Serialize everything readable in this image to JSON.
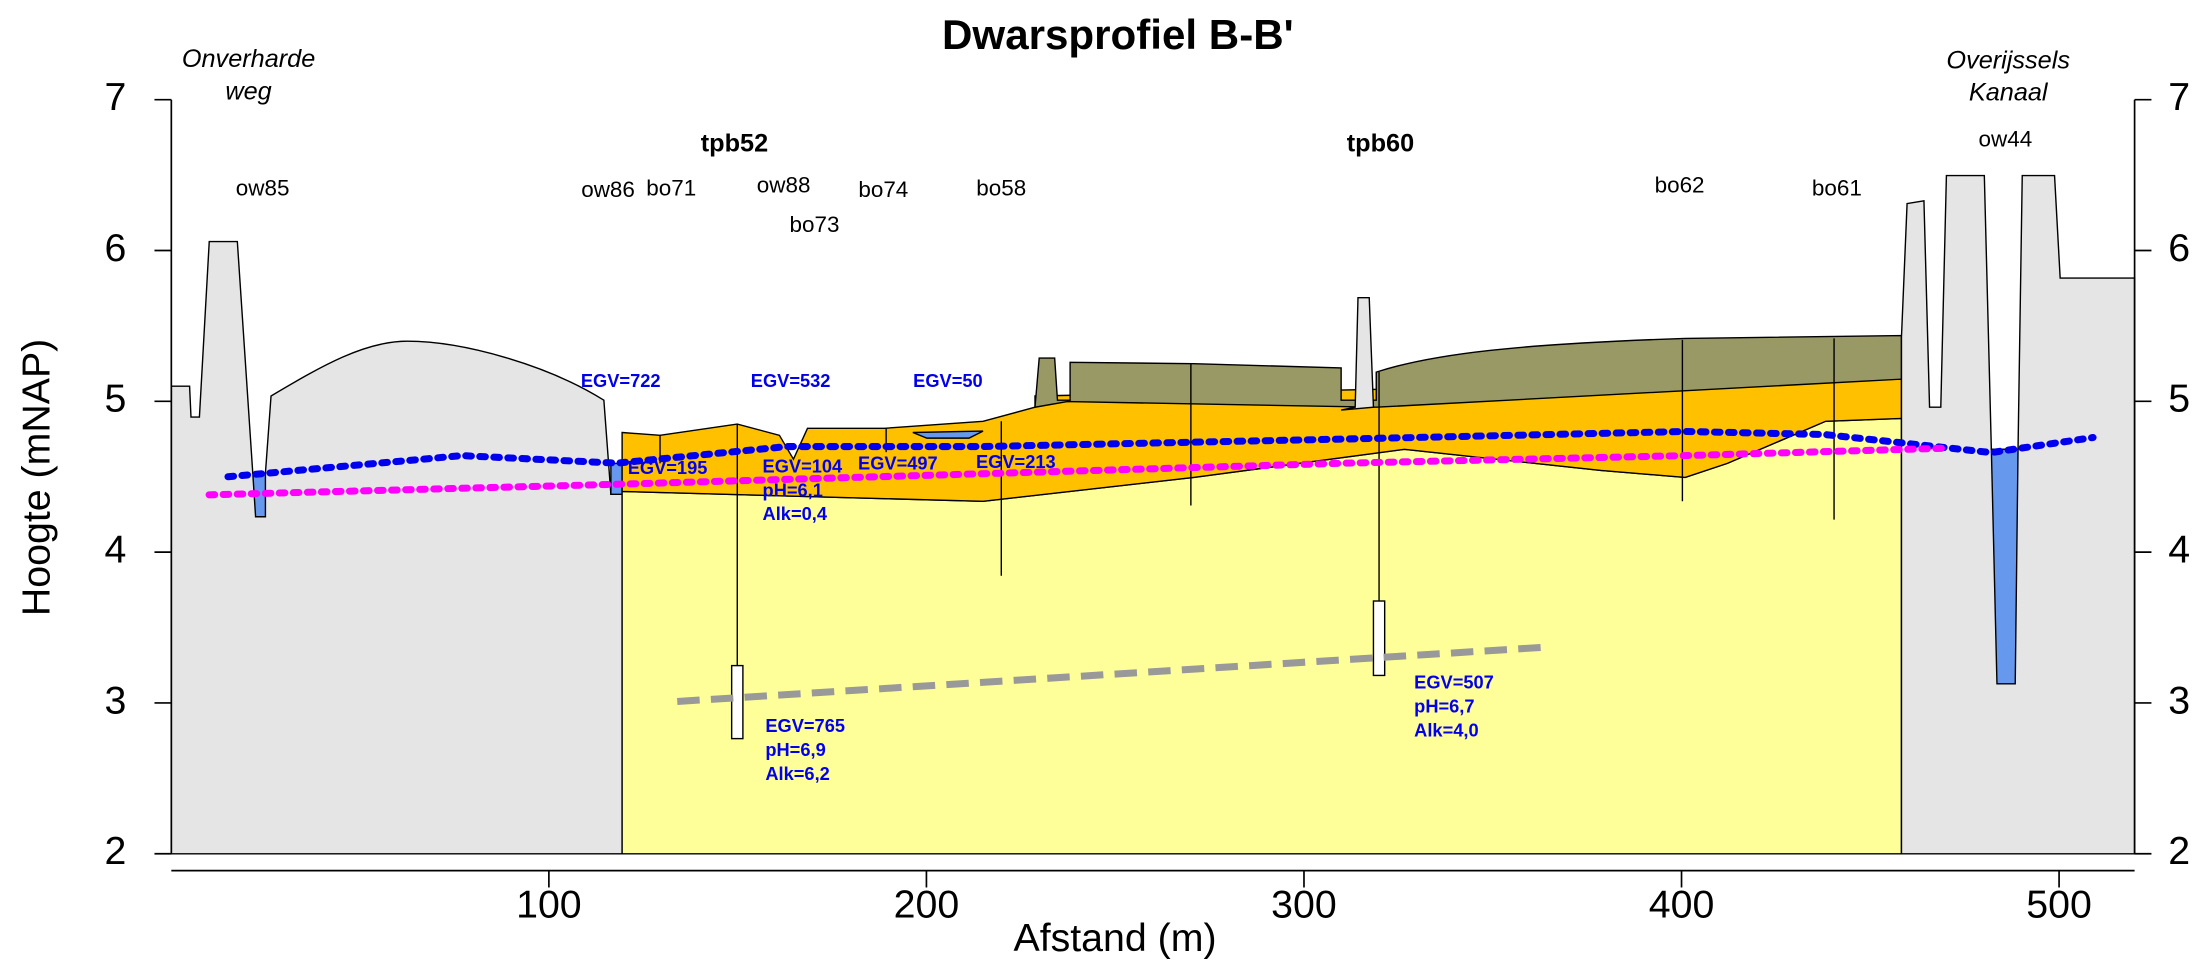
{
  "chart_data": {
    "type": "profile",
    "title": "Dwarsprofiel B-B'",
    "x_label": "Afstand (m)",
    "y_label": "Hoogte (mNAP)",
    "xlim": [
      0,
      520
    ],
    "xticks": [
      100,
      200,
      300,
      400,
      500
    ],
    "ylim": [
      2,
      7
    ],
    "yticks": [
      2,
      3,
      4,
      5,
      6,
      7
    ],
    "y2lim": [
      2,
      7
    ],
    "y2ticks": [
      2,
      3,
      4,
      5,
      6,
      7
    ],
    "series": [
      {
        "color": "#0000ee",
        "x": [
          15,
          77,
          118,
          163,
          215,
          311,
          401,
          438,
          482,
          509
        ],
        "values": [
          4.5,
          4.64,
          4.59,
          4.7,
          4.7,
          4.75,
          4.8,
          4.78,
          4.66,
          4.76
        ]
      },
      {
        "color": "#ff00ff",
        "x": [
          10,
          118,
          215,
          311,
          401,
          471
        ],
        "values": [
          4.38,
          4.45,
          4.52,
          4.59,
          4.64,
          4.69
        ]
      },
      {
        "color": "#999999",
        "x": [
          134,
          364
        ],
        "values": [
          3.01,
          3.37
        ]
      }
    ],
    "annotations": {
      "left_place": [
        "Onverharde",
        "weg"
      ],
      "right_place": [
        "Overijssels",
        "Kanaal"
      ],
      "wells": [
        "tpb52",
        "tpb60"
      ],
      "points": [
        "ow85",
        "ow86",
        "bo71",
        "ow88",
        "bo73",
        "bo74",
        "bo58",
        "bo62",
        "bo61",
        "ow44"
      ],
      "egv": [
        "EGV=722",
        "EGV=532",
        "EGV=50",
        "EGV=195",
        "EGV=497",
        "EGV=213"
      ],
      "tpb52_shallow": [
        "EGV=104",
        "pH=6,1",
        "Alk=0,4"
      ],
      "tpb52_deep": [
        "EGV=765",
        "pH=6,9",
        "Alk=6,2"
      ],
      "tpb60_deep": [
        "EGV=507",
        "pH=6,7",
        "Alk=4,0"
      ]
    }
  }
}
